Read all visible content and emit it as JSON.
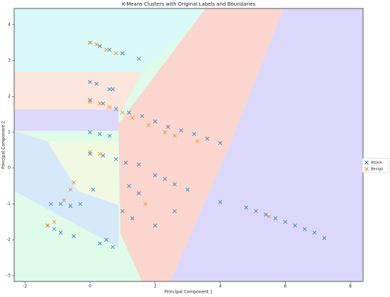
{
  "chart_data": {
    "type": "scatter",
    "title": "K-Means Clusters with Original Labels and Boundaries",
    "x_label": "Principal Component 1",
    "y_label": "Principal Component 2",
    "xlim": [
      -2.33,
      8.39
    ],
    "ylim": [
      -3.16,
      4.45
    ],
    "xticks": [
      -2,
      0,
      2,
      4,
      6,
      8
    ],
    "yticks": [
      -3,
      -2,
      -1,
      0,
      1,
      2,
      3,
      4
    ],
    "legend": "right",
    "series": [
      {
        "name": "Attack",
        "color": "#1f77b4",
        "x": [
          0.0,
          0.3,
          0.6,
          1.0,
          1.5,
          0.0,
          0.2,
          0.6,
          0.7,
          0.0,
          0.4,
          0.8,
          1.2,
          1.6,
          2.0,
          2.4,
          2.8,
          3.2,
          3.6,
          4.0,
          0.0,
          0.3,
          0.6,
          0.0,
          0.4,
          0.8,
          1.1,
          1.5,
          2.0,
          2.3,
          2.6,
          3.0,
          4.0,
          4.8,
          5.1,
          5.4,
          5.7,
          6.0,
          6.3,
          6.6,
          6.9,
          7.2,
          -1.2,
          -0.9,
          -0.6,
          -0.3,
          -1.3,
          -1.1,
          -0.9,
          0.3,
          0.5,
          0.7,
          1.0,
          1.3,
          2.0,
          1.5,
          1.2,
          -0.5,
          0.1,
          2.6
        ],
        "y": [
          3.5,
          3.4,
          3.3,
          3.2,
          3.05,
          2.4,
          2.35,
          2.2,
          2.2,
          1.9,
          1.8,
          1.65,
          1.55,
          1.45,
          1.3,
          1.15,
          1.05,
          0.95,
          0.82,
          0.7,
          1.0,
          0.95,
          0.9,
          0.4,
          0.35,
          0.25,
          0.15,
          0.1,
          -0.2,
          -0.3,
          -0.45,
          -0.6,
          -0.95,
          -1.1,
          -1.2,
          -1.3,
          -1.4,
          -1.5,
          -1.6,
          -1.7,
          -1.8,
          -1.95,
          -1.0,
          -1.0,
          -1.05,
          -1.0,
          -1.6,
          -1.7,
          -1.8,
          -2.1,
          -2.0,
          -2.2,
          -1.2,
          -1.4,
          -1.6,
          -0.7,
          -0.5,
          -1.9,
          -0.6,
          -1.2
        ]
      },
      {
        "name": "Benign",
        "color": "#ff7f0e",
        "x": [
          0.0,
          0.2,
          0.5,
          0.8,
          0.0,
          0.3,
          0.6,
          1.0,
          1.3,
          1.8,
          2.3,
          2.6,
          3.3,
          0.0,
          0.3,
          -0.6,
          -0.5,
          -0.8,
          -1.3,
          -1.1,
          1.7,
          5.5
        ],
        "y": [
          3.5,
          3.45,
          3.3,
          3.2,
          1.85,
          1.8,
          1.7,
          1.55,
          1.4,
          1.2,
          1.0,
          0.9,
          0.75,
          0.45,
          0.4,
          -0.6,
          -0.4,
          -0.9,
          -1.6,
          -1.5,
          -1.0,
          -1.35
        ]
      }
    ]
  }
}
